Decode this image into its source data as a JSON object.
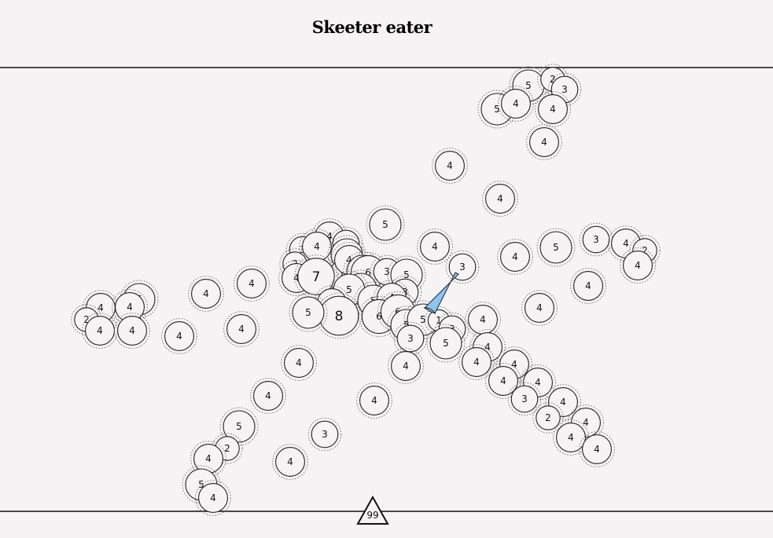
{
  "game": {
    "title": "Skeeter eater",
    "score": "99",
    "colors": {
      "background": "#f5f3f4",
      "player": "#8ec5f0",
      "line": "#111111"
    }
  },
  "bugs": [
    {
      "v": "5"
    },
    {
      "v": "2"
    },
    {
      "v": "3"
    },
    {
      "v": "5"
    },
    {
      "v": "4"
    },
    {
      "v": "4"
    },
    {
      "v": "4"
    },
    {
      "v": "4"
    },
    {
      "v": "4"
    },
    {
      "v": "5"
    },
    {
      "v": "4"
    },
    {
      "v": "4"
    },
    {
      "v": "5"
    },
    {
      "v": "3"
    },
    {
      "v": "4"
    },
    {
      "v": "2"
    },
    {
      "v": "4"
    },
    {
      "v": "3"
    },
    {
      "v": "4"
    },
    {
      "v": "4"
    },
    {
      "v": "4"
    },
    {
      "v": "3"
    },
    {
      "v": "4"
    },
    {
      "v": "3"
    },
    {
      "v": "2"
    },
    {
      "v": "4"
    },
    {
      "v": "5"
    },
    {
      "v": "5"
    },
    {
      "v": "4"
    },
    {
      "v": "7"
    },
    {
      "v": "5"
    },
    {
      "v": "6"
    },
    {
      "v": "3"
    },
    {
      "v": "5"
    },
    {
      "v": "3"
    },
    {
      "v": "5"
    },
    {
      "v": "5"
    },
    {
      "v": "5"
    },
    {
      "v": "4"
    },
    {
      "v": "4"
    },
    {
      "v": "6"
    },
    {
      "v": "6"
    },
    {
      "v": "8"
    },
    {
      "v": "5"
    },
    {
      "v": "5"
    },
    {
      "v": "5"
    },
    {
      "v": "1"
    },
    {
      "v": "3"
    },
    {
      "v": "3"
    },
    {
      "v": "5"
    },
    {
      "v": "4"
    },
    {
      "v": "4"
    },
    {
      "v": "4"
    },
    {
      "v": "4"
    },
    {
      "v": "5"
    },
    {
      "v": "2"
    },
    {
      "v": "4"
    },
    {
      "v": "4"
    },
    {
      "v": "4"
    },
    {
      "v": "4"
    },
    {
      "v": "4"
    },
    {
      "v": "4"
    },
    {
      "v": "4"
    },
    {
      "v": "4"
    },
    {
      "v": "4"
    },
    {
      "v": "4"
    },
    {
      "v": "4"
    },
    {
      "v": "3"
    },
    {
      "v": "4"
    },
    {
      "v": "2"
    },
    {
      "v": "4"
    },
    {
      "v": "4"
    },
    {
      "v": "4"
    },
    {
      "v": "4"
    },
    {
      "v": "4"
    },
    {
      "v": "4"
    },
    {
      "v": "5"
    },
    {
      "v": "2"
    },
    {
      "v": "3"
    },
    {
      "v": "4"
    },
    {
      "v": "4"
    },
    {
      "v": "5"
    },
    {
      "v": "4"
    }
  ]
}
